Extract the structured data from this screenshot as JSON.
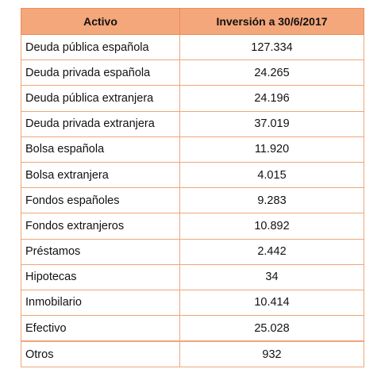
{
  "table": {
    "headers": [
      "Activo",
      "Inversión a 30/6/2017"
    ],
    "rows": [
      {
        "activo": "Deuda pública española",
        "inversion": "127.334"
      },
      {
        "activo": "Deuda privada española",
        "inversion": "24.265"
      },
      {
        "activo": "Deuda pública extranjera",
        "inversion": "24.196"
      },
      {
        "activo": "Deuda privada extranjera",
        "inversion": "37.019"
      },
      {
        "activo": "Bolsa española",
        "inversion": "11.920"
      },
      {
        "activo": "Bolsa extranjera",
        "inversion": "4.015"
      },
      {
        "activo": "Fondos españoles",
        "inversion": "9.283"
      },
      {
        "activo": "Fondos extranjeros",
        "inversion": "10.892"
      },
      {
        "activo": "Préstamos",
        "inversion": "2.442"
      },
      {
        "activo": "Hipotecas",
        "inversion": "34"
      },
      {
        "activo": "Inmobilario",
        "inversion": "10.414"
      },
      {
        "activo": "Efectivo",
        "inversion": "25.028"
      },
      {
        "activo": "Otros",
        "inversion": "932"
      }
    ]
  },
  "colors": {
    "header_bg": "#f4a77a",
    "border": "#f0a57a"
  }
}
